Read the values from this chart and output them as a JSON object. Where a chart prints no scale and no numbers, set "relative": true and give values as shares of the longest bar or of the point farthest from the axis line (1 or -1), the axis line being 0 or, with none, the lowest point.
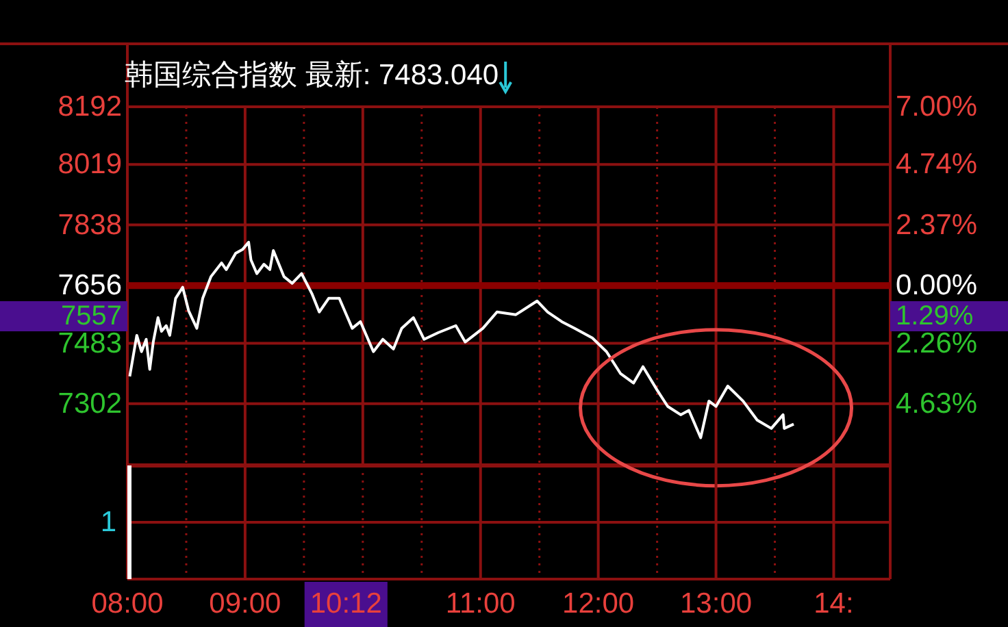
{
  "chart_data": [
    {
      "type": "line",
      "title": "韩国综合指数 最新: 7483.040",
      "x": [
        8.02,
        8.08,
        8.12,
        8.16,
        8.19,
        8.22,
        8.26,
        8.29,
        8.33,
        8.36,
        8.41,
        8.47,
        8.52,
        8.59,
        8.64,
        8.71,
        8.8,
        8.84,
        8.92,
        8.98,
        9.03,
        9.05,
        9.1,
        9.16,
        9.21,
        9.24,
        9.33,
        9.4,
        9.48,
        9.57,
        9.63,
        9.71,
        9.8,
        9.91,
        9.98,
        10.09,
        10.17,
        10.26,
        10.33,
        10.43,
        10.52,
        10.64,
        10.79,
        10.87,
        11.02,
        11.14,
        11.3,
        11.48,
        11.57,
        11.69,
        11.8,
        11.95,
        12.07,
        12.19,
        12.3,
        12.38,
        12.5,
        12.59,
        12.7,
        12.77,
        12.87,
        12.94,
        13.0,
        13.1,
        13.23,
        13.35,
        13.47,
        13.57,
        13.58,
        13.66
      ],
      "series": [
        {
          "color": "#ffffff",
          "values": [
            7384,
            7507,
            7458,
            7495,
            7405,
            7487,
            7560,
            7519,
            7536,
            7507,
            7618,
            7651,
            7581,
            7528,
            7618,
            7683,
            7724,
            7704,
            7753,
            7765,
            7786,
            7733,
            7692,
            7720,
            7704,
            7761,
            7683,
            7663,
            7692,
            7630,
            7577,
            7618,
            7618,
            7528,
            7548,
            7458,
            7495,
            7466,
            7528,
            7560,
            7495,
            7515,
            7536,
            7487,
            7528,
            7577,
            7569,
            7610,
            7577,
            7548,
            7528,
            7499,
            7458,
            7392,
            7364,
            7413,
            7343,
            7294,
            7269,
            7282,
            7200,
            7310,
            7294,
            7355,
            7310,
            7253,
            7228,
            7269,
            7228,
            7241
          ]
        }
      ],
      "xlim": [
        8,
        14.48
      ],
      "xticks": [
        8,
        {
          "value": 8.5,
          "label": null
        },
        9,
        {
          "value": 9.5,
          "label": null
        },
        10,
        {
          "value": 10.5,
          "label": null
        },
        11,
        {
          "value": 11.5,
          "label": null
        },
        12,
        {
          "value": 12.5,
          "label": null
        },
        13,
        {
          "value": 13.5,
          "label": null
        },
        14
      ],
      "ylim": [
        7117,
        8192
      ],
      "yticks": [
        8192,
        8019,
        7838,
        7656,
        7483,
        7302
      ],
      "y2lim": [
        -7.04,
        7.0
      ],
      "y2ticks": [
        {
          "value": 7,
          "label": "7.00%"
        },
        {
          "value": 4.74,
          "label": "4.74%"
        },
        {
          "value": 2.37,
          "label": "2.37%"
        },
        {
          "value": 0,
          "label": "0.00%"
        },
        {
          "value": -2.26,
          "label": "2.26%"
        },
        {
          "value": -4.63,
          "label": "4.63%"
        }
      ],
      "ref_lines": [
        {
          "axis": "y",
          "value": 7656,
          "color": "#8b0000"
        }
      ],
      "annotations": [
        "7557",
        "1.29%"
      ],
      "grid": true,
      "tick_labels": "y"
    },
    {
      "type": "bar",
      "relative": true,
      "x": [
        8.0
      ],
      "values": [
        1
      ],
      "color": "#ffffff",
      "xlim": [
        8,
        14.48
      ],
      "xticks": [
        {
          "value": 8,
          "label": "08:00"
        },
        {
          "value": 8.5,
          "label": null
        },
        {
          "value": 9,
          "label": "09:00"
        },
        {
          "value": 9.5,
          "label": null
        },
        {
          "value": 10,
          "label": null
        },
        {
          "value": 10.5,
          "label": null
        },
        {
          "value": 11,
          "label": "11:00"
        },
        {
          "value": 11.5,
          "label": null
        },
        {
          "value": 12,
          "label": "12:00"
        },
        {
          "value": 12.5,
          "label": null
        },
        {
          "value": 13,
          "label": "13:00"
        },
        {
          "value": 13.5,
          "label": null
        },
        {
          "value": 14,
          "label": "14:"
        }
      ],
      "annotations": [
        "1",
        "10:12"
      ],
      "grid": true,
      "tick_labels": "x"
    }
  ]
}
